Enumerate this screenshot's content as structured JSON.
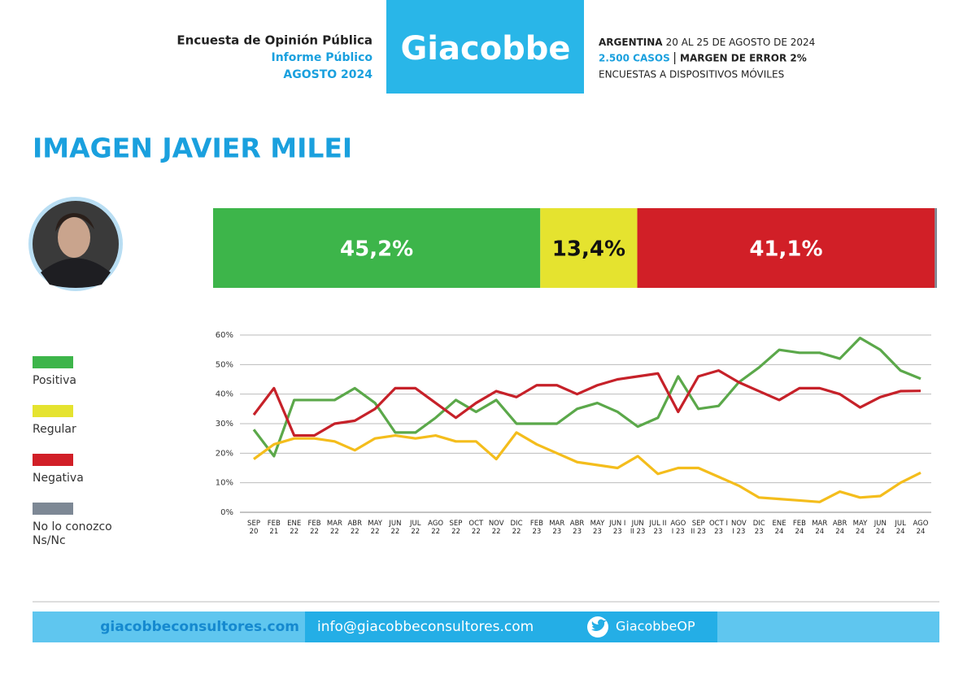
{
  "header": {
    "survey": "Encuesta de Opinión Pública",
    "report": "Informe Público",
    "period": "AGOSTO 2024",
    "brand": "Giacobbe",
    "location": "ARGENTINA",
    "dates": "20 AL 25 DE AGOSTO DE 2024",
    "cases": "2.500 CASOS",
    "margin": "MARGEN DE ERROR 2%",
    "method": "ENCUESTAS A DISPOSITIVOS MÓVILES"
  },
  "title": "IMAGEN JAVIER MILEI",
  "chart_data": [
    {
      "type": "bar",
      "orientation": "horizontal",
      "stacked": true,
      "xlim": [
        0,
        100
      ],
      "legend": "left",
      "series": [
        {
          "name": "Positiva",
          "color": "#3db54a",
          "values": [
            45.2
          ],
          "value_labels": [
            "45,2%"
          ]
        },
        {
          "name": "Regular",
          "color": "#e5e32f",
          "values": [
            13.4
          ],
          "value_labels": [
            "13,4%"
          ]
        },
        {
          "name": "Negativa",
          "color": "#d11f27",
          "values": [
            41.1
          ],
          "value_labels": [
            "41,1%"
          ]
        },
        {
          "name": "No lo conozco\nNs/Nc",
          "color": "#7d8895",
          "values": [
            0.3
          ]
        }
      ]
    },
    {
      "type": "line",
      "grid": true,
      "ylim": [
        0,
        60
      ],
      "yticks": [
        {
          "value": 0,
          "label": "0%"
        },
        {
          "value": 10,
          "label": "10%"
        },
        {
          "value": 20,
          "label": "20%"
        },
        {
          "value": 30,
          "label": "30%"
        },
        {
          "value": 40,
          "label": "40%"
        },
        {
          "value": 50,
          "label": "50%"
        },
        {
          "value": 60,
          "label": "60%"
        }
      ],
      "categories": [
        "SEP\n20",
        "FEB\n21",
        "ENE\n22",
        "FEB\n22",
        "MAR\n22",
        "ABR\n22",
        "MAY\n22",
        "JUN\n22",
        "JUL\n22",
        "AGO\n22",
        "SEP\n22",
        "OCT\n22",
        "NOV\n22",
        "DIC\n22",
        "FEB\n23",
        "MAR\n23",
        "ABR\n23",
        "MAY\n23",
        "JUN I\n23",
        "JUN\nII 23",
        "JUL II\n23",
        "AGO\nI 23",
        "SEP\nII 23",
        "OCT I\n23",
        "NOV\nI 23",
        "DIC\n23",
        "ENE\n24",
        "FEB\n24",
        "MAR\n24",
        "ABR\n24",
        "MAY\n24",
        "JUN\n24",
        "JUL\n24",
        "AGO\n24"
      ],
      "series": [
        {
          "color": "#5ba84a",
          "values": [
            28,
            19,
            38,
            38,
            38,
            42,
            37,
            27,
            27,
            32,
            38,
            34,
            38,
            30,
            30,
            30,
            35,
            37,
            34,
            29,
            32,
            46,
            35,
            36,
            44,
            49,
            55,
            54,
            54,
            52,
            59,
            55,
            48,
            45.2
          ]
        },
        {
          "color": "#f4bd1c",
          "values": [
            18,
            23,
            25,
            25,
            24,
            21,
            25,
            26,
            25,
            26,
            24,
            24,
            18,
            27,
            23,
            20,
            17,
            16,
            15,
            19,
            13,
            15,
            15,
            12,
            9,
            5,
            4.5,
            4,
            3.5,
            7,
            5,
            5.5,
            10,
            13.4
          ]
        },
        {
          "color": "#c62129",
          "values": [
            33,
            42,
            26,
            26,
            30,
            31,
            35,
            42,
            42,
            37,
            32,
            37,
            41,
            39,
            43,
            43,
            40,
            43,
            45,
            46,
            47,
            34,
            46,
            48,
            44,
            41,
            38,
            42,
            42,
            40,
            35.5,
            39,
            41,
            41.1
          ]
        }
      ]
    }
  ],
  "footer": {
    "website": "giacobbeconsultores.com",
    "email": "info@giacobbeconsultores.com",
    "twitter": "GiacobbeOP"
  }
}
